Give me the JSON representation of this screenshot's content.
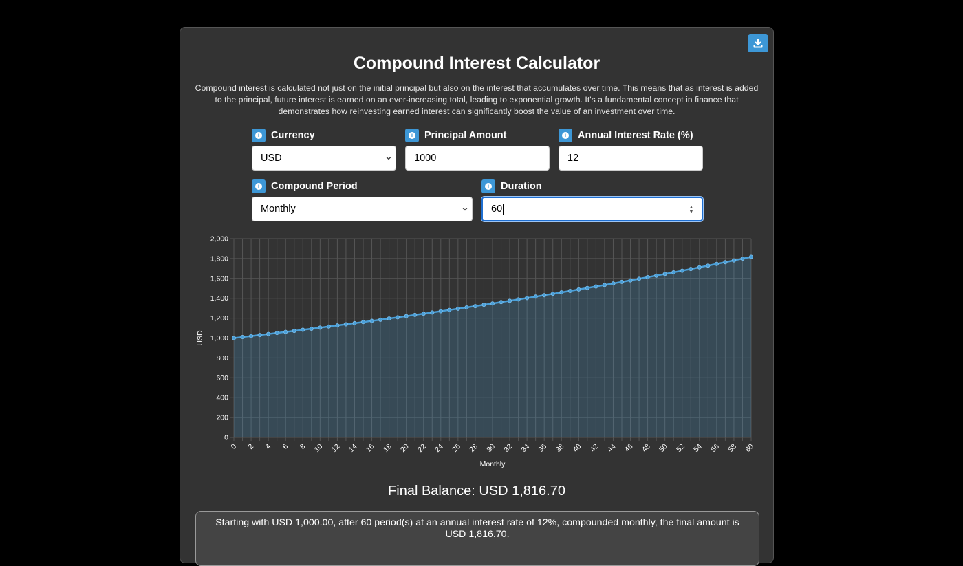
{
  "title": "Compound Interest Calculator",
  "description": "Compound interest is calculated not just on the initial principal but also on the interest that accumulates over time. This means that as interest is added to the principal, future interest is earned on an ever-increasing total, leading to exponential growth. It's a fundamental concept in finance that demonstrates how reinvesting earned interest can significantly boost the value of an investment over time.",
  "form": {
    "currency": {
      "label": "Currency",
      "value": "USD"
    },
    "principal": {
      "label": "Principal Amount",
      "value": "1000"
    },
    "rate": {
      "label": "Annual Interest Rate (%)",
      "value": "12"
    },
    "period": {
      "label": "Compound Period",
      "value": "Monthly"
    },
    "duration": {
      "label": "Duration",
      "value": "60"
    }
  },
  "icons": {
    "download": "download-icon",
    "info": "info-icon"
  },
  "colors": {
    "accent": "#3d97d6",
    "panel": "#333333",
    "line": "#4a9fd8"
  },
  "chart_data": {
    "type": "area",
    "x": [
      0,
      1,
      2,
      3,
      4,
      5,
      6,
      7,
      8,
      9,
      10,
      11,
      12,
      13,
      14,
      15,
      16,
      17,
      18,
      19,
      20,
      21,
      22,
      23,
      24,
      25,
      26,
      27,
      28,
      29,
      30,
      31,
      32,
      33,
      34,
      35,
      36,
      37,
      38,
      39,
      40,
      41,
      42,
      43,
      44,
      45,
      46,
      47,
      48,
      49,
      50,
      51,
      52,
      53,
      54,
      55,
      56,
      57,
      58,
      59,
      60
    ],
    "x_ticks": [
      0,
      2,
      4,
      6,
      8,
      10,
      12,
      14,
      16,
      18,
      20,
      22,
      24,
      26,
      28,
      30,
      32,
      34,
      36,
      38,
      40,
      42,
      44,
      46,
      48,
      50,
      52,
      54,
      56,
      58,
      60
    ],
    "y_ticks": [
      0,
      200,
      400,
      600,
      800,
      1000,
      1200,
      1400,
      1600,
      1800,
      2000
    ],
    "y_tick_labels": [
      "0",
      "200",
      "400",
      "600",
      "800",
      "1,000",
      "1,200",
      "1,400",
      "1,600",
      "1,800",
      "2,000"
    ],
    "ylim": [
      0,
      2000
    ],
    "xlim": [
      0,
      60
    ],
    "xlabel": "Monthly",
    "ylabel": "USD",
    "grid": true,
    "series": [
      {
        "values": [
          1000.0,
          1010.0,
          1020.1,
          1030.3,
          1040.6,
          1051.01,
          1061.52,
          1072.14,
          1082.86,
          1093.69,
          1104.62,
          1115.67,
          1126.83,
          1138.09,
          1149.47,
          1160.97,
          1172.58,
          1184.3,
          1196.15,
          1208.11,
          1220.19,
          1232.39,
          1244.72,
          1257.16,
          1269.73,
          1282.43,
          1295.26,
          1308.21,
          1321.29,
          1334.5,
          1347.85,
          1361.33,
          1374.94,
          1388.69,
          1402.58,
          1416.6,
          1430.77,
          1445.08,
          1459.53,
          1474.12,
          1488.86,
          1503.75,
          1518.79,
          1533.98,
          1549.32,
          1564.81,
          1580.46,
          1596.26,
          1612.23,
          1628.35,
          1644.63,
          1661.08,
          1677.69,
          1694.47,
          1711.41,
          1728.53,
          1745.81,
          1763.27,
          1780.9,
          1798.71,
          1816.7
        ]
      }
    ]
  },
  "final_balance": "Final Balance: USD 1,816.70",
  "summary": "Starting with USD 1,000.00, after 60 period(s) at an annual interest rate of 12%, compounded monthly, the final amount is USD 1,816.70."
}
